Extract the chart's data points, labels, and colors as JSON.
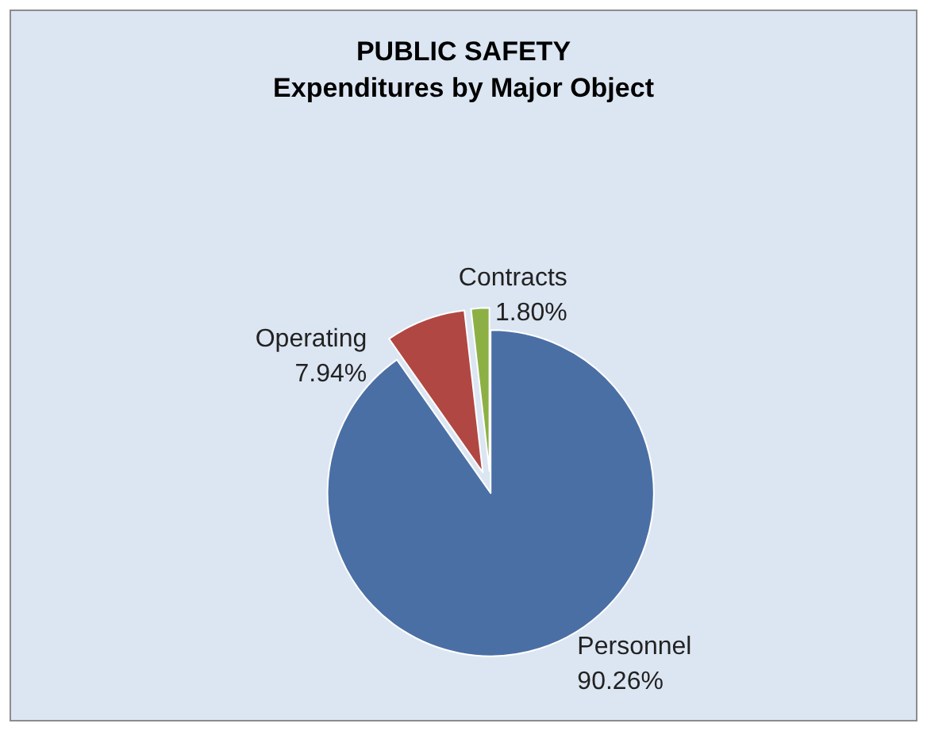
{
  "chart_data": {
    "type": "pie",
    "title": "PUBLIC SAFETY",
    "subtitle": "Expenditures by Major Object",
    "categories": [
      "Personnel",
      "Operating",
      "Contracts"
    ],
    "values": [
      90.26,
      7.94,
      1.8
    ],
    "value_labels": [
      "90.26%",
      "7.94%",
      "1.80%"
    ],
    "colors": [
      "#4a6fa5",
      "#b04743",
      "#8db045"
    ],
    "legend": false
  }
}
